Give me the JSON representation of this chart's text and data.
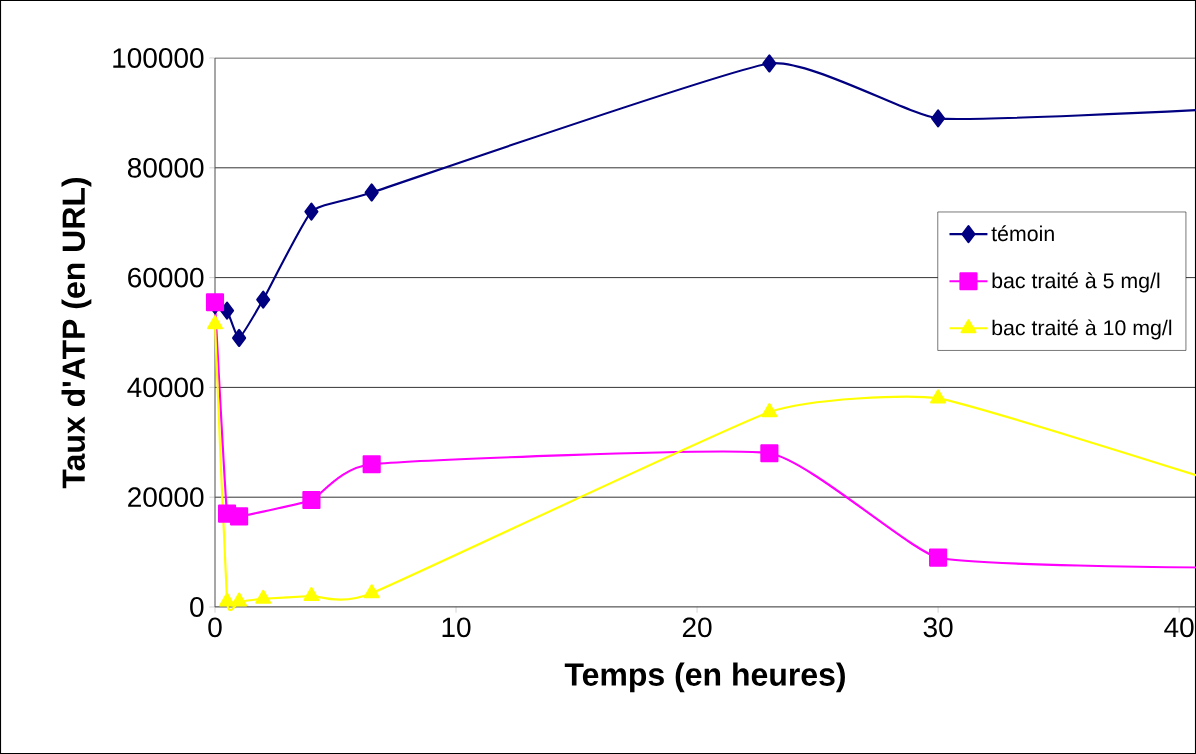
{
  "chart_data": {
    "type": "line",
    "xlabel": "Temps (en heures)",
    "ylabel": "Taux d'ATP (en URL)",
    "xlim": [
      0,
      40.7
    ],
    "ylim": [
      0,
      100000
    ],
    "xticks": [
      0,
      10,
      20,
      30,
      40
    ],
    "yticks": [
      0,
      20000,
      40000,
      60000,
      80000,
      100000
    ],
    "grid": "y",
    "legend": "right",
    "line_style": "solid",
    "series": [
      {
        "name": "témoin",
        "color": "#000080",
        "marker": "diamond",
        "x": [
          0,
          0.5,
          1,
          2,
          4,
          6.5,
          23,
          30,
          40.7
        ],
        "values": [
          55000,
          54000,
          49000,
          56000,
          72000,
          75500,
          99000,
          89000,
          90500
        ]
      },
      {
        "name": "bac traité à 5 mg/l",
        "color": "#ff00ff",
        "marker": "square",
        "x": [
          0,
          0.5,
          1,
          4,
          6.5,
          23,
          30,
          40.7
        ],
        "values": [
          55500,
          17000,
          16500,
          19500,
          26000,
          28000,
          9000,
          7200
        ]
      },
      {
        "name": "bac traité à 10 mg/l",
        "color": "#ffff00",
        "marker": "triangle",
        "x": [
          0,
          0.5,
          1,
          2,
          4,
          6.5,
          23,
          30,
          40.7
        ],
        "values": [
          51500,
          1000,
          1000,
          1500,
          2000,
          2500,
          35500,
          38000,
          24000
        ]
      }
    ]
  }
}
